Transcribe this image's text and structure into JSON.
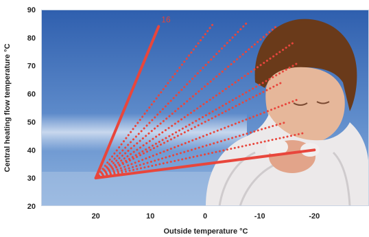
{
  "chart_data": {
    "type": "line",
    "title": "",
    "xlabel": "Outside temperature °C",
    "ylabel": "Central heating flow temperature °C",
    "xlim": [
      30,
      -30
    ],
    "ylim": [
      20,
      90
    ],
    "x_ticks": [
      20,
      10,
      0,
      -10,
      -20
    ],
    "y_ticks": [
      20,
      30,
      40,
      50,
      60,
      70,
      80,
      90
    ],
    "grid": false,
    "legend": "none",
    "origin": {
      "x": 20,
      "y": 30
    },
    "annotation": "16",
    "colors": {
      "curve": "#e8463c",
      "sky_top": "#2f5fae",
      "sky_bottom": "#7ea6d6",
      "plot_border": "#c9d4e4"
    },
    "series": [
      {
        "style": "solid",
        "points": [
          [
            20,
            30
          ],
          [
            8.5,
            84
          ]
        ]
      },
      {
        "style": "dotted",
        "points": [
          [
            20,
            30
          ],
          [
            -1.5,
            85
          ]
        ]
      },
      {
        "style": "dotted",
        "points": [
          [
            20,
            30
          ],
          [
            -7.5,
            85
          ]
        ]
      },
      {
        "style": "dotted",
        "points": [
          [
            20,
            30
          ],
          [
            -13,
            84
          ]
        ]
      },
      {
        "style": "dotted",
        "points": [
          [
            20,
            30
          ],
          [
            -16,
            78
          ]
        ]
      },
      {
        "style": "dotted",
        "points": [
          [
            20,
            30
          ],
          [
            -17,
            71
          ]
        ]
      },
      {
        "style": "dotted",
        "points": [
          [
            20,
            30
          ],
          [
            -14,
            64
          ]
        ]
      },
      {
        "style": "dotted",
        "points": [
          [
            20,
            30
          ],
          [
            -17,
            58
          ]
        ]
      },
      {
        "style": "dotted",
        "points": [
          [
            20,
            30
          ],
          [
            -15,
            50
          ]
        ]
      },
      {
        "style": "dotted",
        "points": [
          [
            20,
            30
          ],
          [
            -18,
            46
          ]
        ]
      },
      {
        "style": "solid",
        "points": [
          [
            20,
            30
          ],
          [
            -20,
            40
          ]
        ]
      }
    ]
  }
}
